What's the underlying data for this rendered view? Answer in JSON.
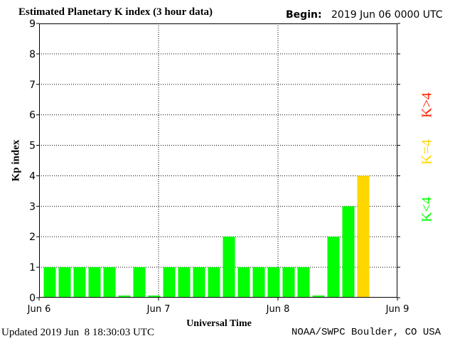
{
  "chart_data": {
    "type": "bar",
    "title": "Estimated Planetary K index (3 hour data)",
    "begin_label": "Begin:",
    "begin_value": "2019 Jun 06 0000 UTC",
    "ylabel": "Kp index",
    "xlabel": "Universal Time",
    "ylim": [
      0,
      9
    ],
    "yticks": [
      "0",
      "1",
      "2",
      "3",
      "4",
      "5",
      "6",
      "7",
      "8",
      "9"
    ],
    "xticks": [
      "Jun 6",
      "Jun 7",
      "Jun 8",
      "Jun 9"
    ],
    "bins": 24,
    "values": [
      1,
      1,
      1,
      1,
      1,
      0.07,
      1,
      0.07,
      1,
      1,
      1,
      1,
      2,
      1,
      1,
      1,
      1,
      1,
      0.07,
      2,
      3,
      4
    ],
    "grid": "dotted",
    "colors": {
      "low": "#00ff00",
      "mid": "#ffd700",
      "high": "#ff2200"
    },
    "legend": [
      {
        "label": "K<4",
        "color": "#00ff00"
      },
      {
        "label": "K=4",
        "color": "#ffd700"
      },
      {
        "label": "K>4",
        "color": "#ff2200"
      }
    ]
  },
  "footer": {
    "updated": "Updated 2019 Jun  8 18:30:03 UTC",
    "credit": "NOAA/SWPC Boulder, CO USA"
  }
}
